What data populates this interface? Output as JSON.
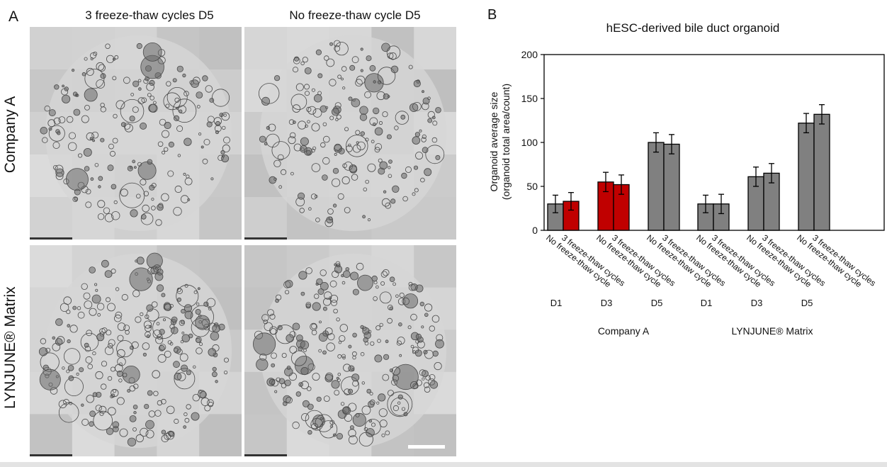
{
  "panel_a": {
    "letter": "A",
    "columns": [
      "3 freeze-thaw cycles D5",
      "No freeze-thaw cycle D5"
    ],
    "rows": [
      "Company A",
      "LYNJUNE® Matrix"
    ],
    "images": [
      {
        "row": "Company A",
        "column": "3 freeze-thaw cycles D5"
      },
      {
        "row": "Company A",
        "column": "No freeze-thaw cycle D5"
      },
      {
        "row": "LYNJUNE® Matrix",
        "column": "3 freeze-thaw cycles D5"
      },
      {
        "row": "LYNJUNE® Matrix",
        "column": "No freeze-thaw cycle D5"
      }
    ]
  },
  "panel_b": {
    "letter": "B"
  },
  "chart_data": {
    "type": "bar",
    "title": "hESC-derived bile duct organoid",
    "ylabel_line1": "Organoid average size",
    "ylabel_line2": "(organoid total area/count)",
    "ylim": [
      0,
      200
    ],
    "yticks": [
      0,
      50,
      100,
      150,
      200
    ],
    "grid": false,
    "legend": "none",
    "categories": [
      "No freeze-thaw cycle",
      "3 freeze-thaw cycles",
      "No freeze-thaw cycle",
      "3 freeze-thaw cycles",
      "No freeze-thaw cycle",
      "3 freeze-thaw cycles",
      "No freeze-thaw cycle",
      "3 freeze-thaw cycles",
      "No freeze-thaw cycle",
      "3 freeze-thaw cycles",
      "No freeze-thaw cycle",
      "3 freeze-thaw cycles"
    ],
    "values": [
      30,
      33,
      55,
      52,
      100,
      98,
      30,
      30,
      61,
      65,
      122,
      132
    ],
    "errors": [
      10,
      10,
      11,
      11,
      11,
      11,
      10,
      11,
      11,
      11,
      11,
      11
    ],
    "colors": [
      "#808080",
      "#c00000",
      "#c00000",
      "#c00000",
      "#808080",
      "#808080",
      "#808080",
      "#808080",
      "#808080",
      "#808080",
      "#808080",
      "#808080"
    ],
    "day_labels": [
      "D1",
      "D3",
      "D5",
      "D1",
      "D3",
      "D5"
    ],
    "group_labels": [
      "Company A",
      "LYNJUNE® Matrix"
    ]
  }
}
